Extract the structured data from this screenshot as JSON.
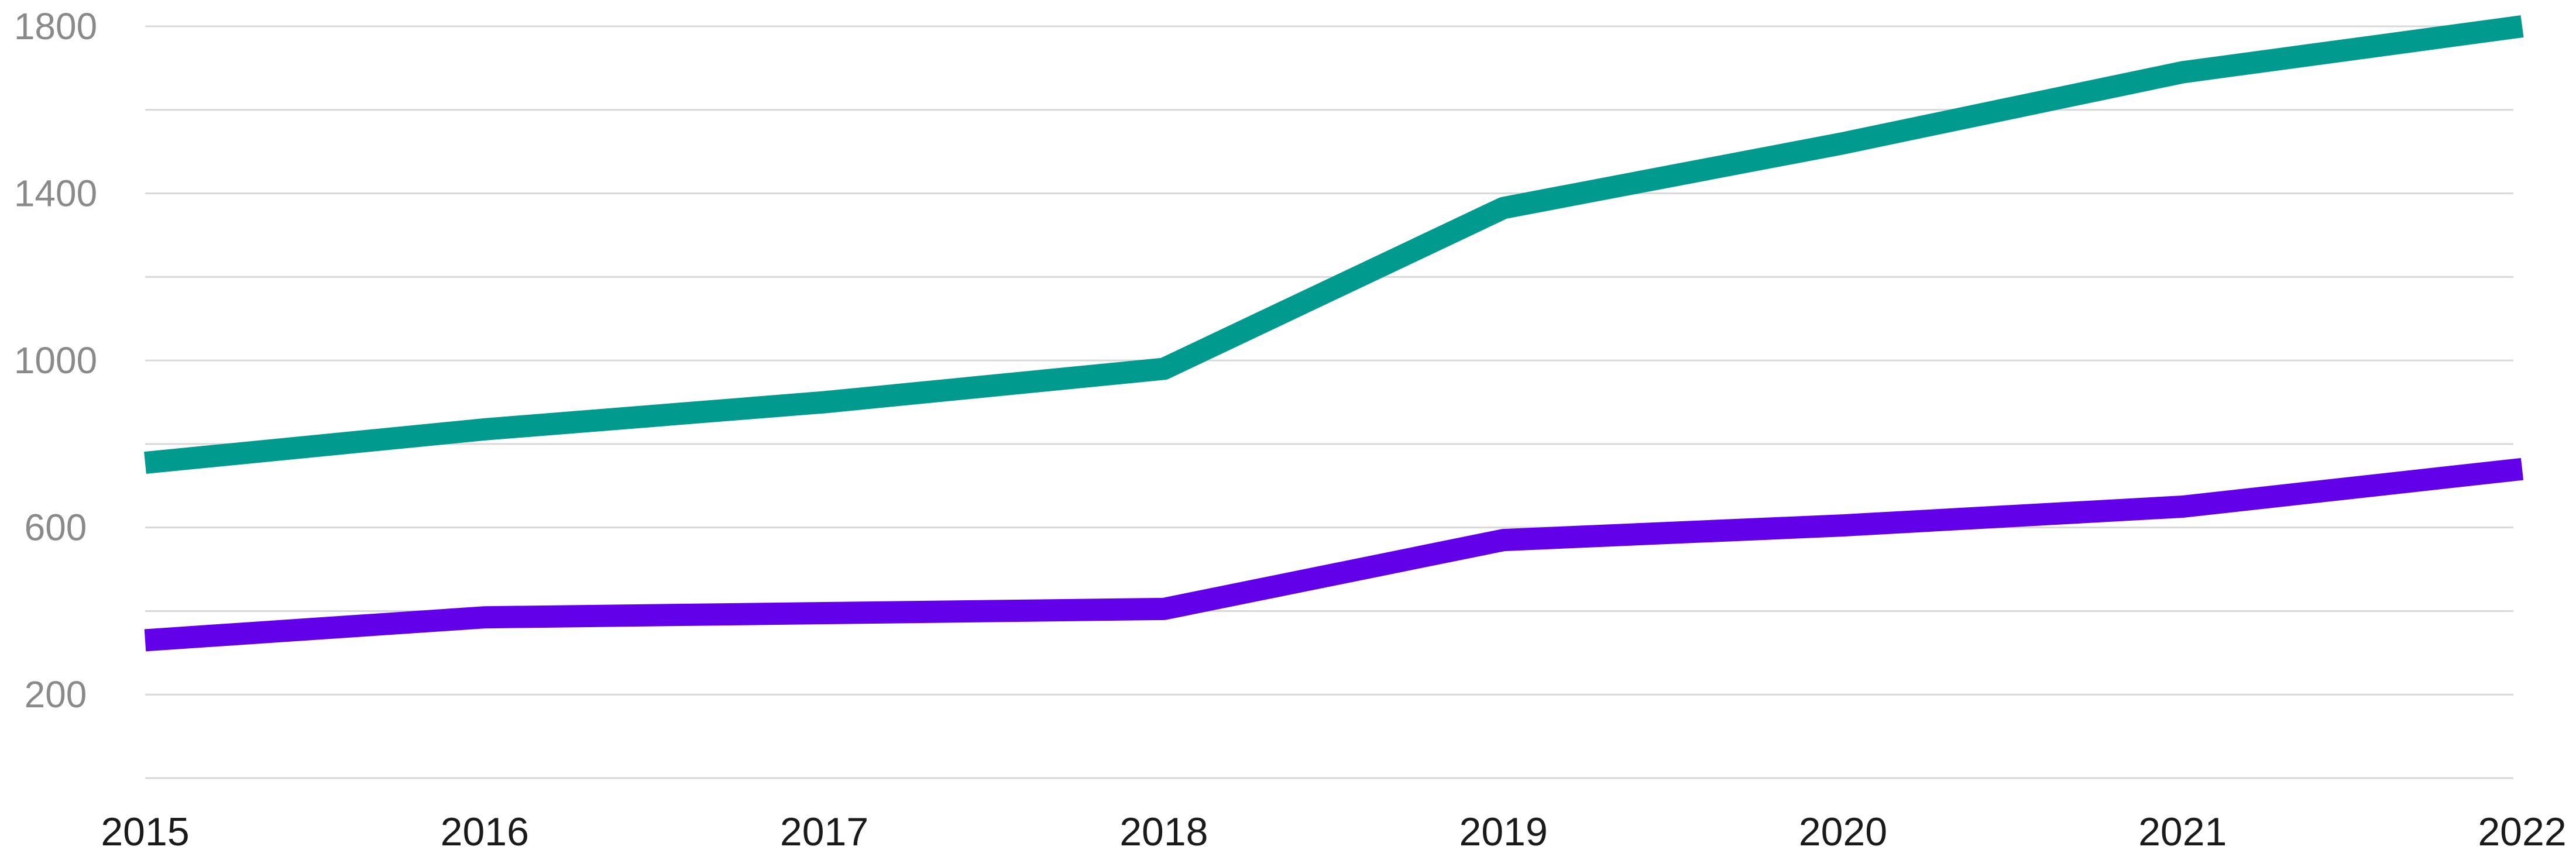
{
  "chart_data": {
    "type": "line",
    "title": "",
    "xlabel": "",
    "ylabel": "",
    "x": [
      "2015",
      "2016",
      "2017",
      "2018",
      "2019",
      "2020",
      "2021",
      "2022"
    ],
    "y_ticks": [
      "200",
      "600",
      "1000",
      "1400",
      "1800"
    ],
    "ylim": [
      0,
      1800
    ],
    "grid": true,
    "series": [
      {
        "color": "#009a8e",
        "values": [
          755,
          835,
          900,
          980,
          1365,
          1520,
          1690,
          1800
        ]
      },
      {
        "color": "#6200ea",
        "values": [
          330,
          385,
          395,
          405,
          570,
          605,
          650,
          740
        ]
      }
    ]
  }
}
